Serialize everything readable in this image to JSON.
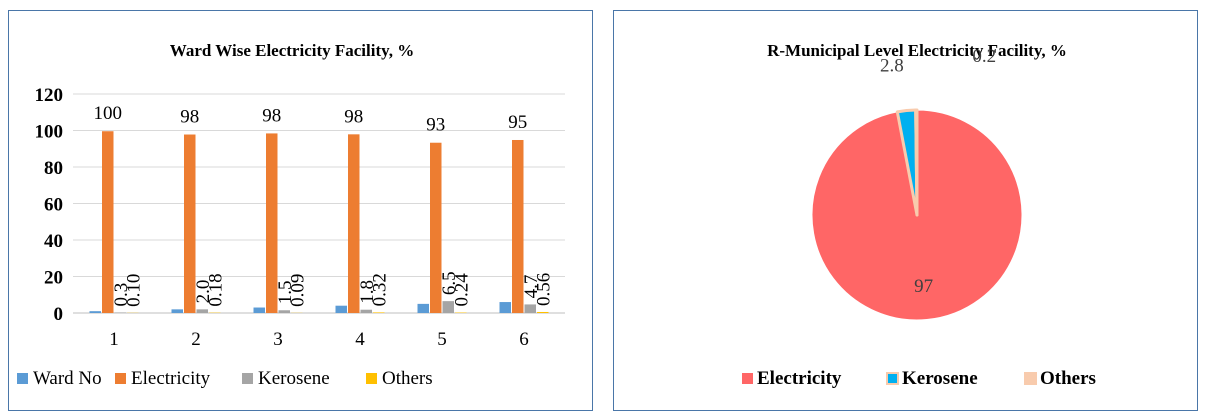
{
  "chart_data": [
    {
      "type": "bar",
      "title": "Ward Wise Electricity Facility, %",
      "categories": [
        "1",
        "2",
        "3",
        "4",
        "5",
        "6"
      ],
      "ylim": [
        0,
        120
      ],
      "yticks": [
        "0",
        "20",
        "40",
        "60",
        "80",
        "100",
        "120"
      ],
      "grid": true,
      "legend_position": "bottom",
      "series": [
        {
          "name": "Ward No",
          "color": "#5b9bd5",
          "values": [
            1,
            2,
            3,
            4,
            5,
            6
          ],
          "labels": [
            "",
            "",
            "",
            "",
            "",
            ""
          ]
        },
        {
          "name": "Electricity",
          "color": "#ed7d31",
          "values": [
            99.6,
            97.8,
            98.4,
            97.9,
            93.3,
            94.8
          ],
          "labels": [
            "100",
            "98",
            "98",
            "98",
            "93",
            "95"
          ]
        },
        {
          "name": "Kerosene",
          "color": "#a5a5a5",
          "values": [
            0.3,
            2.0,
            1.5,
            1.8,
            6.5,
            4.7
          ],
          "labels": [
            "0.3",
            "2.0",
            "1.5",
            "1.8",
            "6.5",
            "4.7"
          ]
        },
        {
          "name": "Others",
          "color": "#ffc000",
          "values": [
            0.1,
            0.18,
            0.09,
            0.32,
            0.24,
            0.56
          ],
          "labels": [
            "0.10",
            "0.18",
            "0.09",
            "0.32",
            "0.24",
            "0.56"
          ]
        }
      ]
    },
    {
      "type": "pie",
      "title": "R-Municipal Level Electricity Facility, %",
      "legend_position": "bottom",
      "slices": [
        {
          "name": "Electricity",
          "value": 97,
          "label": "97",
          "color": "#ff6666"
        },
        {
          "name": "Kerosene",
          "value": 2.8,
          "label": "2.8",
          "color": "#00b0f0"
        },
        {
          "name": "Others",
          "value": 0.2,
          "label": "0.2",
          "color": "#f8cbad"
        }
      ]
    }
  ]
}
